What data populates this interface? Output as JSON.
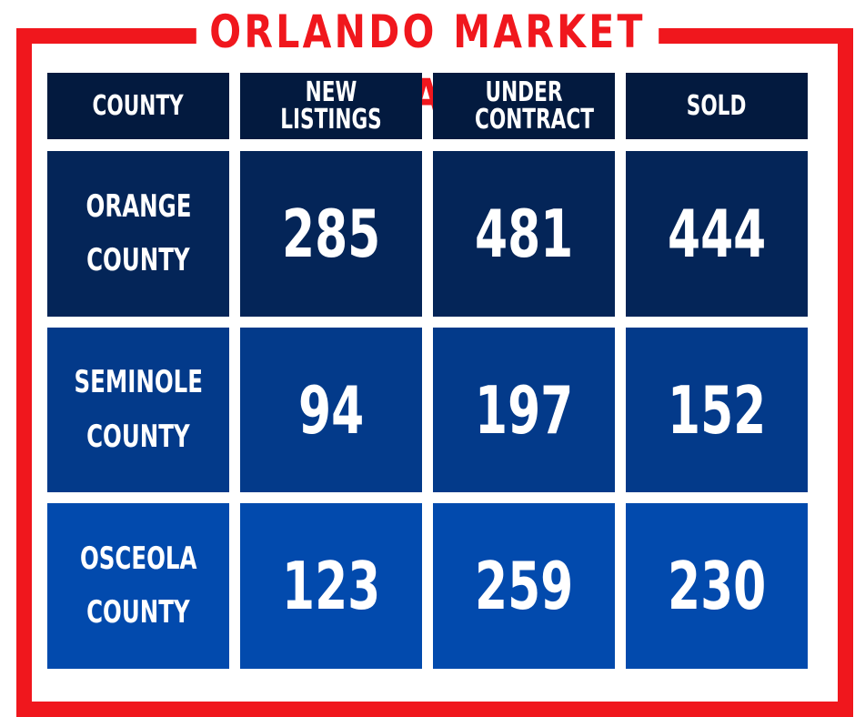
{
  "title": "ORLANDO MARKET STATS",
  "colors": {
    "frame": "#f0171d",
    "header": "#031a3f",
    "row1": "#042558",
    "row2": "#033a8a",
    "row3": "#024aad"
  },
  "headers": [
    "COUNTY",
    "NEW LISTINGS",
    "UNDER CONTRACT",
    "SOLD"
  ],
  "rows": [
    {
      "county": [
        "ORANGE",
        "COUNTY"
      ],
      "new_listings": "285",
      "under_contract": "481",
      "sold": "444"
    },
    {
      "county": [
        "SEMINOLE",
        "COUNTY"
      ],
      "new_listings": "94",
      "under_contract": "197",
      "sold": "152"
    },
    {
      "county": [
        "OSCEOLA",
        "COUNTY"
      ],
      "new_listings": "123",
      "under_contract": "259",
      "sold": "230"
    }
  ]
}
